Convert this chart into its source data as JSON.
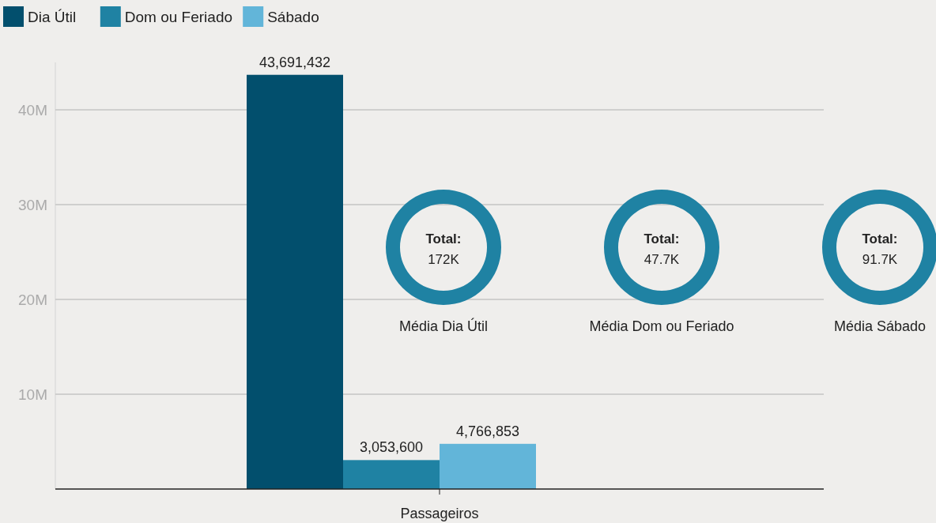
{
  "chart_data": [
    {
      "type": "bar",
      "categories": [
        "Passageiros"
      ],
      "series": [
        {
          "name": "Dia Útil",
          "color": "#024f6d",
          "values": [
            43691432
          ],
          "value_labels": [
            "43,691,432"
          ]
        },
        {
          "name": "Dom ou Feriado",
          "color": "#1f82a3",
          "values": [
            3053600
          ],
          "value_labels": [
            "3,053,600"
          ]
        },
        {
          "name": "Sábado",
          "color": "#62b5d9",
          "values": [
            4766853
          ],
          "value_labels": [
            "4,766,853"
          ]
        }
      ],
      "ylim": [
        0,
        45000000
      ],
      "yticks": [
        {
          "value": 10000000,
          "label": "10M"
        },
        {
          "value": 20000000,
          "label": "20M"
        },
        {
          "value": 30000000,
          "label": "30M"
        },
        {
          "value": 40000000,
          "label": "40M"
        }
      ],
      "grid": "y",
      "legend": "top left"
    },
    {
      "type": "other",
      "title": "Média Dia Útil",
      "annotations": [
        "Total:",
        "172K"
      ]
    },
    {
      "type": "other",
      "title": "Média Dom ou Feriado",
      "annotations": [
        "Total:",
        "47.7K"
      ]
    },
    {
      "type": "other",
      "title": "Média Sábado",
      "annotations": [
        "Total:",
        "91.7K"
      ]
    }
  ]
}
